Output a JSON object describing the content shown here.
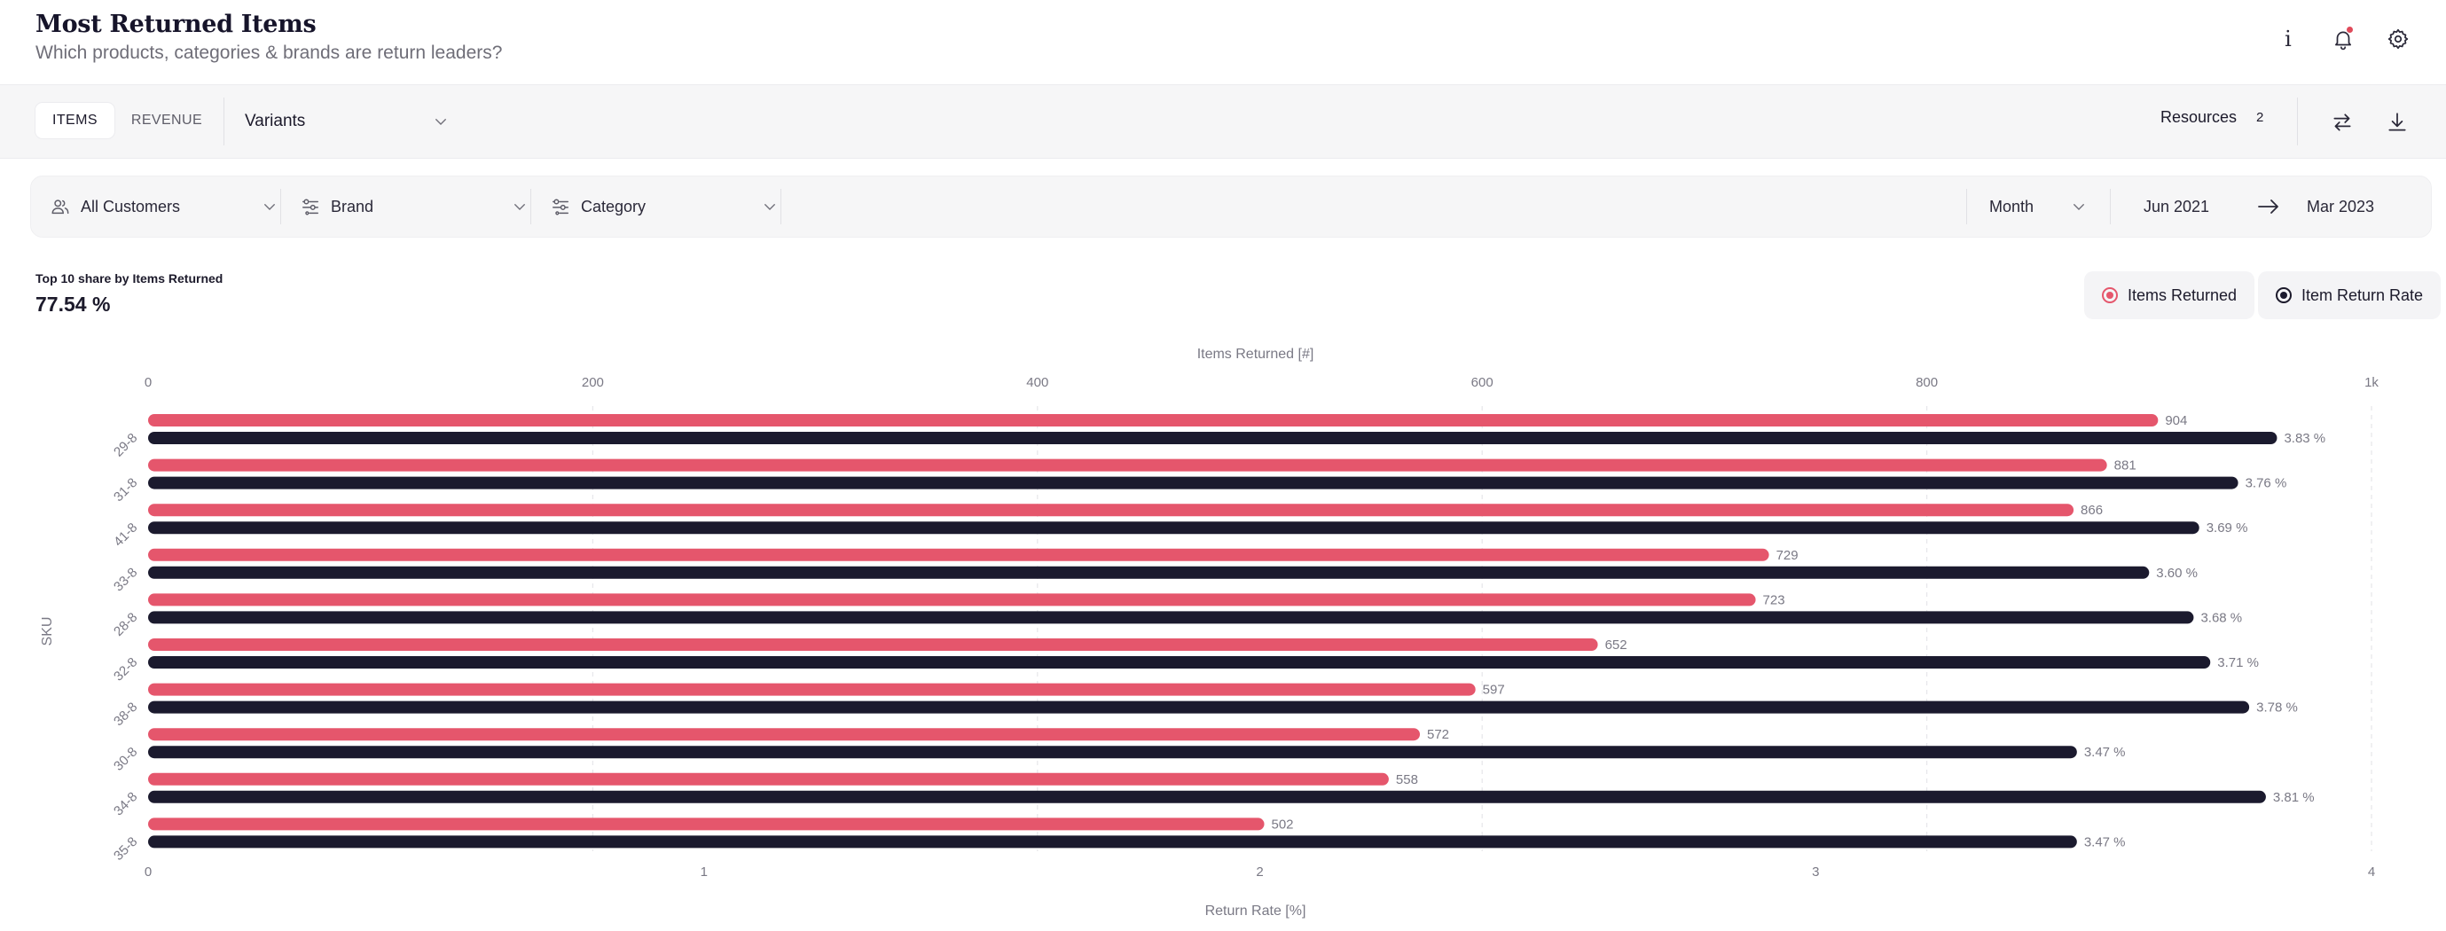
{
  "header": {
    "title": "Most Returned Items",
    "subtitle": "Which products, categories & brands are return leaders?",
    "info_glyph": "i",
    "icons": [
      "info-icon",
      "bell-icon",
      "gear-icon"
    ]
  },
  "toolbar": {
    "tabs": [
      {
        "label": "ITEMS",
        "active": true
      },
      {
        "label": "REVENUE",
        "active": false
      }
    ],
    "variants_label": "Variants",
    "resources_label": "Resources",
    "resources_count": "2"
  },
  "filters": {
    "customers": "All Customers",
    "brand": "Brand",
    "category": "Category",
    "period": "Month",
    "date_from": "Jun 2021",
    "date_to": "Mar 2023"
  },
  "kpi": {
    "label": "Top 10 share by Items Returned",
    "value": "77.54 %"
  },
  "legend": {
    "items_returned": "Items Returned",
    "item_return_rate": "Item Return Rate"
  },
  "colors": {
    "items_returned": "#e5566c",
    "item_return_rate": "#1b1a2e",
    "notification_dot": "#e04a5a"
  },
  "chart_data": {
    "type": "bar",
    "orientation": "horizontal",
    "title": "",
    "ylabel": "SKU",
    "categories": [
      "29-8",
      "31-8",
      "41-8",
      "33-8",
      "28-8",
      "32-8",
      "38-8",
      "30-8",
      "34-8",
      "35-8"
    ],
    "series": [
      {
        "name": "Items Returned",
        "axis_label": "Items Returned [#]",
        "axis_position": "top",
        "range": [
          0,
          1000
        ],
        "ticks": [
          "0",
          "200",
          "400",
          "600",
          "800",
          "1k"
        ],
        "values": [
          904,
          881,
          866,
          729,
          723,
          652,
          597,
          572,
          558,
          502
        ],
        "value_labels": [
          "904",
          "881",
          "866",
          "729",
          "723",
          "652",
          "597",
          "572",
          "558",
          "502"
        ]
      },
      {
        "name": "Item Return Rate",
        "axis_label": "Return Rate [%]",
        "axis_position": "bottom",
        "range": [
          0,
          4
        ],
        "ticks": [
          "0",
          "1",
          "2",
          "3",
          "4"
        ],
        "values": [
          3.83,
          3.76,
          3.69,
          3.6,
          3.68,
          3.71,
          3.78,
          3.47,
          3.81,
          3.47
        ],
        "value_labels": [
          "3.83 %",
          "3.76 %",
          "3.69 %",
          "3.60 %",
          "3.68 %",
          "3.71 %",
          "3.78 %",
          "3.47 %",
          "3.81 %",
          "3.47 %"
        ]
      }
    ],
    "grid": true
  }
}
